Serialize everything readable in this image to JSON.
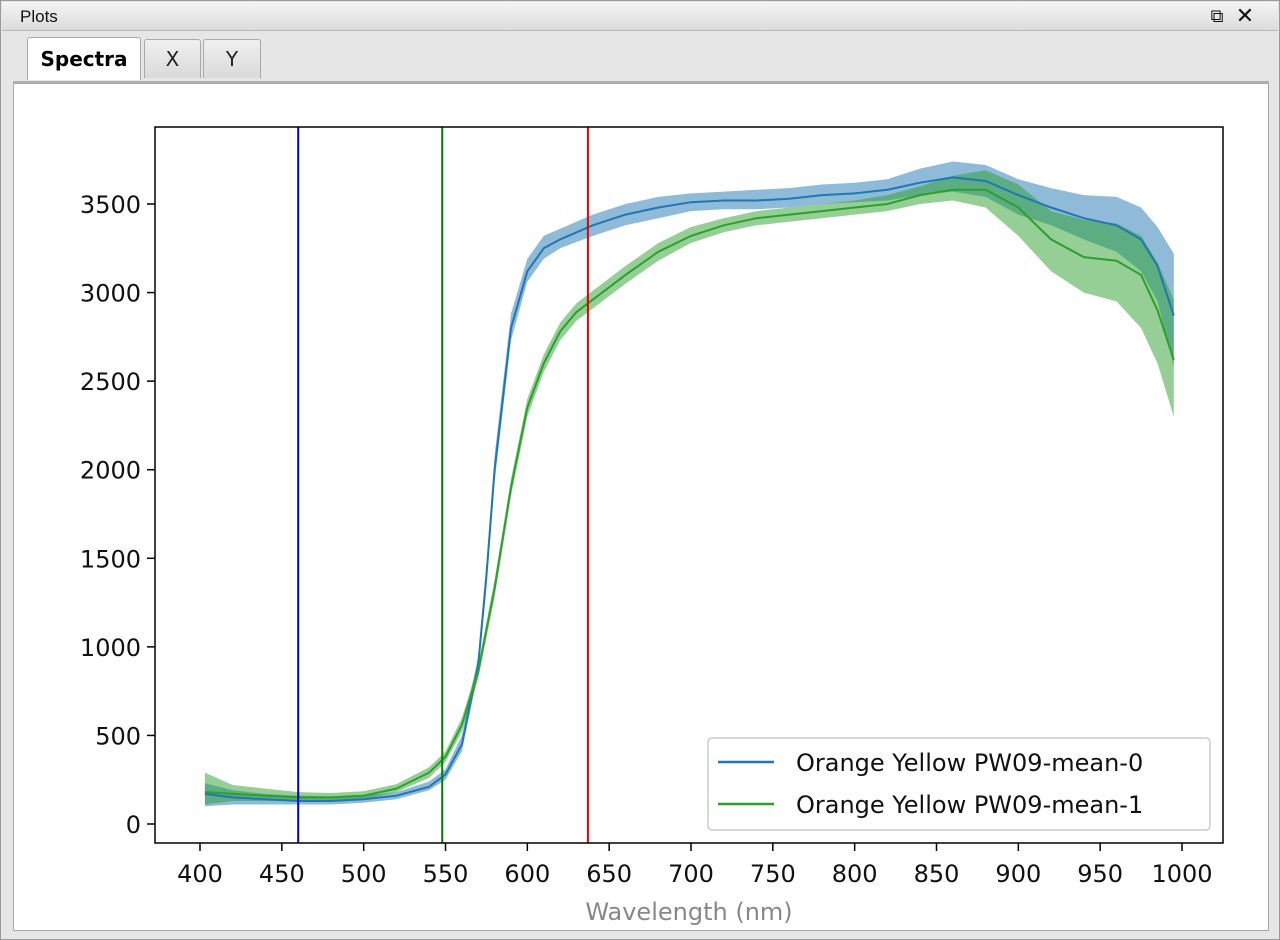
{
  "window": {
    "title": "Plots"
  },
  "icons": {
    "restore": "restore-window-icon",
    "close": "close-icon"
  },
  "tabs": [
    {
      "label": "Spectra",
      "active": true
    },
    {
      "label": "X",
      "active": false
    },
    {
      "label": "Y",
      "active": false
    }
  ],
  "chart_data": {
    "type": "line",
    "title": "",
    "xlabel": "Wavelength (nm)",
    "ylabel": "",
    "xlim": [
      400,
      1000
    ],
    "ylim": [
      -100,
      3920
    ],
    "xticks": [
      "400",
      "450",
      "500",
      "550",
      "600",
      "650",
      "700",
      "750",
      "800",
      "850",
      "900",
      "950",
      "1000"
    ],
    "yticks": [
      "0",
      "500",
      "1000",
      "1500",
      "2000",
      "2500",
      "3000",
      "3500"
    ],
    "grid": false,
    "legend_position": "lower-right",
    "vertical_lines": [
      {
        "x": 460,
        "color": "#0000cc"
      },
      {
        "x": 548,
        "color": "#008000"
      },
      {
        "x": 637,
        "color": "#e00000"
      }
    ],
    "series": [
      {
        "name": "Orange Yellow PW09-mean-0",
        "color": "#1f77b4",
        "x": [
          403,
          420,
          440,
          460,
          480,
          500,
          520,
          540,
          550,
          560,
          570,
          575,
          580,
          590,
          600,
          610,
          620,
          640,
          660,
          680,
          700,
          720,
          740,
          760,
          780,
          800,
          820,
          840,
          860,
          880,
          900,
          920,
          940,
          960,
          975,
          985,
          995
        ],
        "mean": [
          170,
          150,
          140,
          130,
          130,
          140,
          160,
          210,
          280,
          450,
          900,
          1400,
          2000,
          2800,
          3120,
          3250,
          3300,
          3380,
          3440,
          3480,
          3510,
          3520,
          3520,
          3530,
          3550,
          3560,
          3580,
          3620,
          3650,
          3630,
          3550,
          3480,
          3420,
          3380,
          3300,
          3150,
          2870
        ],
        "lower": [
          100,
          110,
          110,
          110,
          110,
          120,
          140,
          190,
          250,
          410,
          850,
          1330,
          1930,
          2730,
          3060,
          3190,
          3250,
          3320,
          3380,
          3420,
          3460,
          3470,
          3470,
          3480,
          3500,
          3510,
          3520,
          3550,
          3570,
          3540,
          3440,
          3380,
          3300,
          3230,
          3120,
          2950,
          2580
        ],
        "upper": [
          230,
          190,
          170,
          160,
          155,
          160,
          180,
          240,
          310,
          500,
          950,
          1470,
          2080,
          2880,
          3190,
          3320,
          3360,
          3440,
          3500,
          3540,
          3560,
          3570,
          3580,
          3590,
          3610,
          3620,
          3640,
          3700,
          3740,
          3720,
          3640,
          3590,
          3550,
          3540,
          3480,
          3370,
          3220
        ]
      },
      {
        "name": "Orange Yellow PW09-mean-1",
        "color": "#2ca02c",
        "x": [
          403,
          420,
          440,
          460,
          480,
          500,
          520,
          540,
          550,
          560,
          570,
          580,
          590,
          600,
          610,
          620,
          630,
          640,
          660,
          680,
          700,
          720,
          740,
          760,
          780,
          800,
          820,
          840,
          860,
          880,
          900,
          920,
          940,
          960,
          975,
          985,
          995
        ],
        "mean": [
          180,
          170,
          160,
          150,
          150,
          160,
          200,
          290,
          380,
          560,
          860,
          1330,
          1900,
          2350,
          2600,
          2780,
          2890,
          2960,
          3100,
          3230,
          3320,
          3380,
          3420,
          3440,
          3460,
          3480,
          3500,
          3550,
          3580,
          3580,
          3480,
          3300,
          3200,
          3180,
          3100,
          2900,
          2620
        ],
        "lower": [
          110,
          130,
          130,
          130,
          130,
          140,
          180,
          260,
          350,
          520,
          820,
          1280,
          1850,
          2300,
          2550,
          2730,
          2840,
          2910,
          3050,
          3180,
          3280,
          3340,
          3380,
          3400,
          3420,
          3440,
          3460,
          3500,
          3520,
          3480,
          3320,
          3120,
          3000,
          2950,
          2800,
          2600,
          2300
        ],
        "upper": [
          290,
          220,
          200,
          180,
          175,
          185,
          225,
          320,
          410,
          600,
          900,
          1380,
          1950,
          2400,
          2650,
          2830,
          2940,
          3010,
          3150,
          3280,
          3370,
          3420,
          3460,
          3480,
          3500,
          3520,
          3550,
          3600,
          3660,
          3690,
          3610,
          3460,
          3410,
          3390,
          3320,
          3170,
          2960
        ]
      }
    ]
  }
}
